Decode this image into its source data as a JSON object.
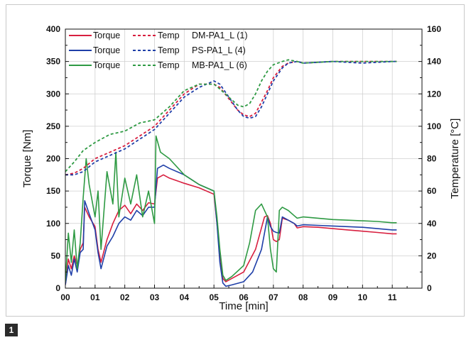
{
  "figure": {
    "badge": "1"
  },
  "chart_data": {
    "type": "line",
    "xlabel": "Time [min]",
    "ylabel_left": "Torque [Nm]",
    "ylabel_right": "Temperature [°C]",
    "xlim": [
      0,
      12
    ],
    "ylim_left": [
      0,
      400
    ],
    "ylim_right": [
      0,
      160
    ],
    "x_ticks": [
      0,
      1,
      2,
      3,
      4,
      5,
      6,
      7,
      8,
      9,
      10,
      11
    ],
    "x_tick_labels": [
      "00",
      "01",
      "02",
      "03",
      "04",
      "05",
      "06",
      "07",
      "08",
      "09",
      "10",
      "11"
    ],
    "y_left_ticks": [
      0,
      50,
      100,
      150,
      200,
      250,
      300,
      350,
      400
    ],
    "y_right_ticks": [
      0,
      20,
      40,
      60,
      80,
      100,
      120,
      140,
      160
    ],
    "grid": true,
    "legend_position": "top-left",
    "legend": [
      {
        "torque_label": "Torque",
        "temp_label": "Temp",
        "sample": "DM-PA1_L (1)",
        "color": "#d81f3f"
      },
      {
        "torque_label": "Torque",
        "temp_label": "Temp",
        "sample": "PS-PA1_L (4)",
        "color": "#1f3fa8"
      },
      {
        "torque_label": "Torque",
        "temp_label": "Temp",
        "sample": "MB-PA1_L (6)",
        "color": "#2e9a43"
      }
    ],
    "series": [
      {
        "color": "#d81f3f",
        "axis": "left",
        "style": "solid",
        "x": [
          0,
          0.1,
          0.2,
          0.3,
          0.4,
          0.5,
          0.6,
          0.65,
          0.8,
          1.0,
          1.1,
          1.2,
          1.4,
          1.6,
          1.8,
          2.0,
          2.2,
          2.4,
          2.6,
          2.8,
          3.0,
          3.1,
          3.3,
          3.5,
          4.0,
          4.5,
          5.0,
          5.1,
          5.2,
          5.3,
          5.4,
          5.6,
          6.0,
          6.4,
          6.7,
          6.8,
          6.9,
          7.0,
          7.1,
          7.2,
          7.3,
          7.5,
          7.7,
          7.8,
          8.0,
          8.5,
          9.0,
          9.5,
          10.0,
          10.5,
          11.0,
          11.15
        ],
        "y": [
          5,
          45,
          30,
          50,
          35,
          60,
          70,
          125,
          110,
          95,
          60,
          40,
          75,
          100,
          120,
          128,
          115,
          130,
          120,
          132,
          130,
          170,
          175,
          170,
          162,
          155,
          145,
          100,
          55,
          15,
          10,
          15,
          25,
          60,
          110,
          112,
          100,
          75,
          72,
          75,
          108,
          105,
          100,
          93,
          95,
          94,
          92,
          90,
          88,
          86,
          84,
          84
        ]
      },
      {
        "color": "#1f3fa8",
        "axis": "left",
        "style": "solid",
        "x": [
          0,
          0.1,
          0.2,
          0.3,
          0.4,
          0.5,
          0.6,
          0.65,
          0.8,
          1.0,
          1.1,
          1.2,
          1.4,
          1.6,
          1.8,
          2.0,
          2.2,
          2.4,
          2.6,
          2.8,
          3.0,
          3.1,
          3.3,
          3.5,
          4.0,
          4.5,
          5.0,
          5.1,
          5.2,
          5.3,
          5.4,
          5.6,
          6.0,
          6.3,
          6.6,
          6.8,
          6.9,
          7.0,
          7.1,
          7.2,
          7.3,
          7.5,
          7.7,
          7.8,
          8.0,
          8.5,
          9.0,
          9.5,
          10.0,
          10.5,
          11.0,
          11.15
        ],
        "y": [
          5,
          35,
          20,
          45,
          25,
          55,
          60,
          135,
          115,
          90,
          55,
          30,
          65,
          80,
          100,
          110,
          105,
          120,
          112,
          125,
          125,
          185,
          190,
          185,
          175,
          160,
          150,
          100,
          40,
          8,
          3,
          5,
          10,
          25,
          60,
          110,
          95,
          88,
          86,
          85,
          110,
          105,
          100,
          96,
          98,
          97,
          96,
          95,
          94,
          92,
          90,
          90
        ]
      },
      {
        "color": "#2e9a43",
        "axis": "left",
        "style": "solid",
        "x": [
          0,
          0.1,
          0.2,
          0.3,
          0.4,
          0.5,
          0.6,
          0.7,
          0.8,
          1.0,
          1.1,
          1.2,
          1.4,
          1.6,
          1.7,
          1.8,
          2.0,
          2.2,
          2.4,
          2.6,
          2.8,
          3.0,
          3.05,
          3.2,
          3.5,
          4.0,
          4.5,
          5.0,
          5.1,
          5.2,
          5.3,
          5.4,
          5.6,
          6.0,
          6.2,
          6.4,
          6.6,
          6.8,
          6.9,
          7.0,
          7.1,
          7.2,
          7.3,
          7.5,
          7.7,
          7.8,
          8.0,
          8.5,
          9.0,
          9.5,
          10.0,
          10.5,
          11.0,
          11.15
        ],
        "y": [
          10,
          85,
          40,
          90,
          30,
          70,
          140,
          200,
          160,
          110,
          150,
          60,
          180,
          130,
          210,
          110,
          170,
          130,
          175,
          110,
          150,
          100,
          235,
          210,
          200,
          175,
          160,
          150,
          110,
          60,
          20,
          12,
          18,
          35,
          70,
          120,
          130,
          110,
          60,
          30,
          25,
          120,
          125,
          120,
          112,
          108,
          110,
          108,
          106,
          105,
          104,
          103,
          101,
          101
        ]
      },
      {
        "color": "#d81f3f",
        "axis": "right",
        "style": "dashed",
        "x": [
          0,
          0.3,
          0.6,
          1.0,
          1.5,
          2.0,
          2.5,
          3.0,
          3.5,
          4.0,
          4.5,
          5.0,
          5.2,
          5.5,
          5.8,
          6.0,
          6.2,
          6.4,
          6.6,
          6.8,
          7.0,
          7.3,
          7.5,
          7.8,
          8.0,
          9.0,
          10.0,
          11.0,
          11.15
        ],
        "y": [
          70,
          71,
          74,
          80,
          84,
          88,
          94,
          100,
          110,
          120,
          126,
          126,
          124,
          117,
          110,
          107,
          106,
          108,
          115,
          122,
          130,
          137,
          139,
          140,
          139,
          140,
          140,
          140,
          140
        ]
      },
      {
        "color": "#1f3fa8",
        "axis": "right",
        "style": "dashed",
        "x": [
          0,
          0.3,
          0.6,
          1.0,
          1.5,
          2.0,
          2.5,
          3.0,
          3.5,
          4.0,
          4.5,
          5.0,
          5.2,
          5.5,
          5.8,
          6.0,
          6.2,
          6.4,
          6.6,
          6.8,
          7.0,
          7.3,
          7.5,
          7.8,
          8.0,
          9.0,
          10.0,
          11.0,
          11.15
        ],
        "y": [
          70,
          70,
          72,
          78,
          82,
          86,
          92,
          98,
          108,
          118,
          124,
          128,
          126,
          118,
          110,
          106,
          105,
          106,
          112,
          120,
          128,
          136,
          139,
          140,
          139,
          140,
          139,
          140,
          140
        ]
      },
      {
        "color": "#2e9a43",
        "axis": "right",
        "style": "dashed",
        "x": [
          0,
          0.3,
          0.6,
          1.0,
          1.5,
          2.0,
          2.5,
          3.0,
          3.5,
          4.0,
          4.5,
          5.0,
          5.2,
          5.5,
          5.8,
          6.0,
          6.2,
          6.4,
          6.6,
          6.8,
          7.0,
          7.3,
          7.5,
          7.8,
          8.0,
          9.0,
          10.0,
          11.0,
          11.15
        ],
        "y": [
          72,
          78,
          85,
          90,
          95,
          97,
          102,
          104,
          112,
          122,
          126,
          126,
          123,
          118,
          113,
          112,
          114,
          120,
          128,
          134,
          138,
          140,
          141,
          140,
          139,
          140,
          140,
          140,
          140
        ]
      }
    ]
  }
}
